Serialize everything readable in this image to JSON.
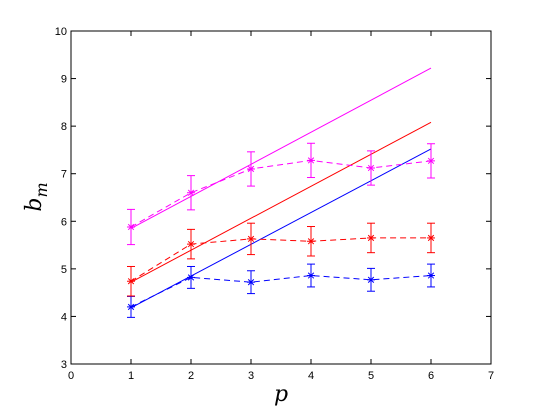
{
  "chart_data": {
    "type": "line",
    "title": "",
    "xlabel": "p",
    "ylabel_main": "b",
    "ylabel_sub": "m",
    "xlim": [
      0,
      7
    ],
    "ylim": [
      3,
      10
    ],
    "xticks": [
      "0",
      "1",
      "2",
      "3",
      "4",
      "5",
      "6",
      "7"
    ],
    "yticks": [
      "3",
      "4",
      "5",
      "6",
      "7",
      "8",
      "9",
      "10"
    ],
    "grid": false,
    "legend": "none",
    "series": [
      {
        "color": "#0000ff",
        "fit_line": [
          [
            1,
            4.18
          ],
          [
            6,
            7.52
          ]
        ],
        "points": [
          [
            1,
            4.2
          ],
          [
            2,
            4.82
          ],
          [
            3,
            4.72
          ],
          [
            4,
            4.86
          ],
          [
            5,
            4.77
          ],
          [
            6,
            4.86
          ]
        ],
        "errors": [
          0.22,
          0.23,
          0.24,
          0.24,
          0.24,
          0.24
        ]
      },
      {
        "color": "#ff0000",
        "fit_line": [
          [
            1,
            4.72
          ],
          [
            6,
            8.08
          ]
        ],
        "points": [
          [
            1,
            4.74
          ],
          [
            2,
            5.52
          ],
          [
            3,
            5.63
          ],
          [
            4,
            5.58
          ],
          [
            5,
            5.65
          ],
          [
            6,
            5.65
          ]
        ],
        "errors": [
          0.31,
          0.31,
          0.33,
          0.31,
          0.31,
          0.31
        ]
      },
      {
        "color": "#ff00ff",
        "fit_line": [
          [
            1,
            5.85
          ],
          [
            6,
            9.22
          ]
        ],
        "points": [
          [
            1,
            5.88
          ],
          [
            2,
            6.6
          ],
          [
            3,
            7.1
          ],
          [
            4,
            7.28
          ],
          [
            5,
            7.12
          ],
          [
            6,
            7.27
          ]
        ],
        "errors": [
          0.37,
          0.36,
          0.36,
          0.36,
          0.36,
          0.36
        ]
      }
    ]
  }
}
